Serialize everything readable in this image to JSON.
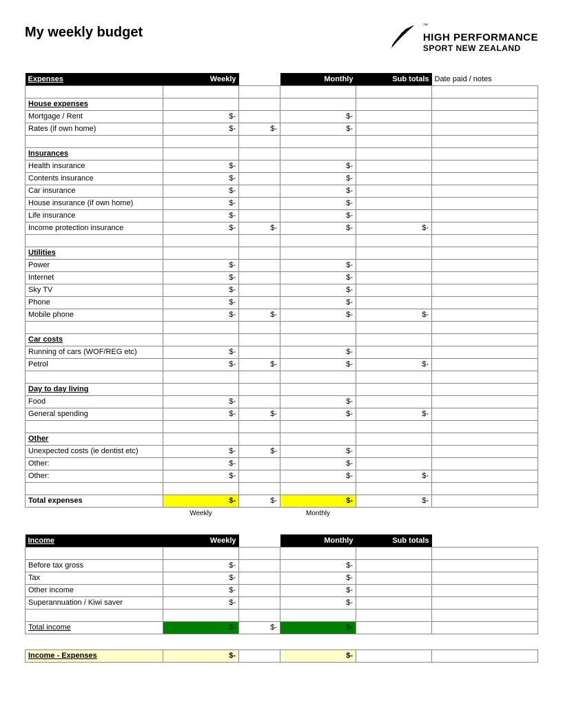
{
  "title": "My weekly budget",
  "logo": {
    "line1": "HIGH PERFORMANCE",
    "line2": "SPORT NEW ZEALAND",
    "tm": "™"
  },
  "colors": {
    "black": "#000000",
    "white": "#ffffff",
    "border": "#888888",
    "hl_yellow": "#ffff00",
    "hl_green": "#008000",
    "hl_ltyellow": "#ffffcc"
  },
  "headers": {
    "expenses": "Expenses",
    "income": "Income",
    "weekly": "Weekly",
    "monthly": "Monthly",
    "subtotals": "Sub totals",
    "notes": "Date paid / notes"
  },
  "axis": {
    "weekly": "Weekly",
    "monthly": "Monthly"
  },
  "dash": "$-",
  "expenses": {
    "sections": [
      {
        "name": "House expenses",
        "items": [
          {
            "label": "Mortgage / Rent",
            "weekly": "$-",
            "gap": "",
            "monthly": "$-",
            "sub": ""
          },
          {
            "label": "Rates (if own home)",
            "weekly": "$-",
            "gap": "$-",
            "monthly": "$-",
            "sub": ""
          }
        ]
      },
      {
        "name": "Insurances",
        "items": [
          {
            "label": "Health insurance",
            "weekly": "$-",
            "gap": "",
            "monthly": "$-",
            "sub": ""
          },
          {
            "label": "Contents insurance",
            "weekly": "$-",
            "gap": "",
            "monthly": "$-",
            "sub": ""
          },
          {
            "label": "Car insurance",
            "weekly": "$-",
            "gap": "",
            "monthly": "$-",
            "sub": ""
          },
          {
            "label": "House insurance (if own home)",
            "weekly": "$-",
            "gap": "",
            "monthly": "$-",
            "sub": ""
          },
          {
            "label": "Life insurance",
            "weekly": "$-",
            "gap": "",
            "monthly": "$-",
            "sub": ""
          },
          {
            "label": "Income protection insurance",
            "weekly": "$-",
            "gap": "$-",
            "monthly": "$-",
            "sub": "$-"
          }
        ]
      },
      {
        "name": "Utilities",
        "items": [
          {
            "label": "Power",
            "weekly": "$-",
            "gap": "",
            "monthly": "$-",
            "sub": ""
          },
          {
            "label": "Internet",
            "weekly": "$-",
            "gap": "",
            "monthly": "$-",
            "sub": ""
          },
          {
            "label": "Sky TV",
            "weekly": "$-",
            "gap": "",
            "monthly": "$-",
            "sub": ""
          },
          {
            "label": "Phone",
            "weekly": "$-",
            "gap": "",
            "monthly": "$-",
            "sub": ""
          },
          {
            "label": "Mobile phone",
            "weekly": "$-",
            "gap": "$-",
            "monthly": "$-",
            "sub": "$-"
          }
        ]
      },
      {
        "name": "Car costs",
        "items": [
          {
            "label": "Running of cars (WOF/REG etc)",
            "weekly": "$-",
            "gap": "",
            "monthly": "$-",
            "sub": ""
          },
          {
            "label": "Petrol",
            "weekly": "$-",
            "gap": "$-",
            "monthly": "$-",
            "sub": "$-"
          }
        ]
      },
      {
        "name": "Day to day living",
        "items": [
          {
            "label": "Food",
            "weekly": "$-",
            "gap": "",
            "monthly": "$-",
            "sub": ""
          },
          {
            "label": "General spending",
            "weekly": "$-",
            "gap": "$-",
            "monthly": "$-",
            "sub": "$-"
          }
        ]
      },
      {
        "name": "Other",
        "items": [
          {
            "label": "Unexpected costs (ie dentist etc)",
            "weekly": "$-",
            "gap": "$-",
            "monthly": "$-",
            "sub": ""
          },
          {
            "label": "Other:",
            "weekly": "$-",
            "gap": "",
            "monthly": "$-",
            "sub": ""
          },
          {
            "label": "Other:",
            "weekly": "$-",
            "gap": "",
            "monthly": "$-",
            "sub": "$-"
          }
        ]
      }
    ],
    "total": {
      "label": "Total expenses",
      "weekly": "$-",
      "gap": "$-",
      "monthly": "$-",
      "sub": "$-"
    }
  },
  "income": {
    "items": [
      {
        "label": "Before tax gross",
        "weekly": "$-",
        "gap": "",
        "monthly": "$-",
        "sub": ""
      },
      {
        "label": "Tax",
        "weekly": "$-",
        "gap": "",
        "monthly": "$-",
        "sub": ""
      },
      {
        "label": "Other income",
        "weekly": "$-",
        "gap": "",
        "monthly": "$-",
        "sub": ""
      },
      {
        "label": "Superannuation / Kiwi saver",
        "weekly": "$-",
        "gap": "",
        "monthly": "$-",
        "sub": ""
      }
    ],
    "total": {
      "label": "Total income",
      "weekly": "$-",
      "gap": "$-",
      "monthly": "$-",
      "sub": ""
    }
  },
  "net": {
    "label": "Income - Expenses",
    "weekly": "$-",
    "gap": "",
    "monthly": "$-",
    "sub": ""
  }
}
